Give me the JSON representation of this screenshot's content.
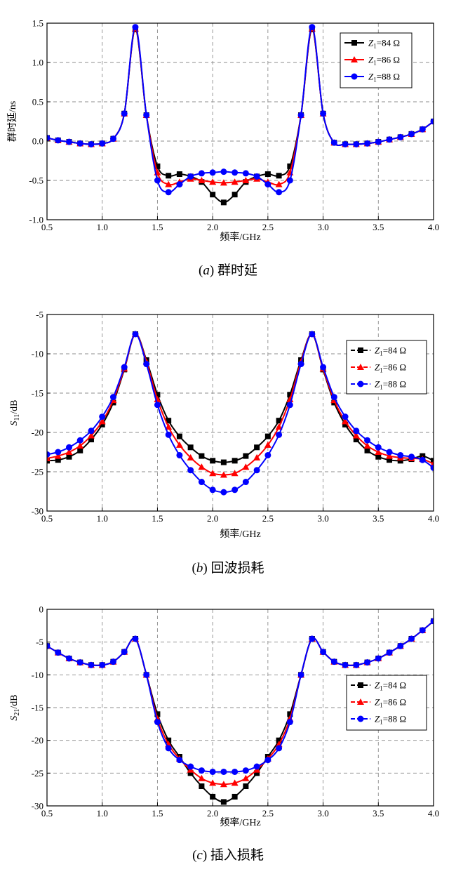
{
  "chart_data": [
    {
      "type": "line",
      "xlabel": "频率/GHz",
      "ylabel": "群时延/ns",
      "caption_letter": "a",
      "caption_text": "群时延",
      "xlim": [
        0.5,
        4.0
      ],
      "ylim": [
        -1.0,
        1.5
      ],
      "xticks": [
        "0.5",
        "1.0",
        "1.5",
        "2.0",
        "2.5",
        "3.0",
        "3.5",
        "4.0"
      ],
      "yticks": [
        "-1.0",
        "-0.5",
        "0.0",
        "0.5",
        "1.0",
        "1.5"
      ],
      "grid": true,
      "legend_position": "top-right",
      "x": [
        0.5,
        0.6,
        0.7,
        0.8,
        0.9,
        1.0,
        1.1,
        1.2,
        1.3,
        1.4,
        1.5,
        1.6,
        1.7,
        1.8,
        1.9,
        2.0,
        2.1,
        2.2,
        2.3,
        2.4,
        2.5,
        2.6,
        2.7,
        2.8,
        2.9,
        3.0,
        3.1,
        3.2,
        3.3,
        3.4,
        3.5,
        3.6,
        3.7,
        3.8,
        3.9,
        4.0
      ],
      "series": [
        {
          "name_sym": "Z",
          "name_sub": "1",
          "name_rest": "=84 Ω",
          "color": "#000000",
          "marker": "square",
          "values": [
            0.04,
            0.01,
            -0.01,
            -0.03,
            -0.04,
            -0.03,
            0.03,
            0.35,
            1.42,
            0.33,
            -0.32,
            -0.44,
            -0.42,
            -0.45,
            -0.52,
            -0.68,
            -0.78,
            -0.68,
            -0.52,
            -0.45,
            -0.42,
            -0.44,
            -0.32,
            0.33,
            1.42,
            0.35,
            -0.02,
            -0.04,
            -0.04,
            -0.03,
            -0.01,
            0.02,
            0.05,
            0.09,
            0.15,
            0.25
          ]
        },
        {
          "name_sym": "Z",
          "name_sub": "1",
          "name_rest": "=86 Ω",
          "color": "#ff0000",
          "marker": "triangle",
          "values": [
            0.04,
            0.01,
            -0.01,
            -0.03,
            -0.04,
            -0.03,
            0.03,
            0.35,
            1.43,
            0.33,
            -0.4,
            -0.55,
            -0.52,
            -0.48,
            -0.5,
            -0.52,
            -0.53,
            -0.52,
            -0.5,
            -0.48,
            -0.52,
            -0.55,
            -0.4,
            0.33,
            1.43,
            0.35,
            -0.02,
            -0.04,
            -0.04,
            -0.03,
            -0.01,
            0.02,
            0.05,
            0.09,
            0.15,
            0.25
          ]
        },
        {
          "name_sym": "Z",
          "name_sub": "1",
          "name_rest": "=88 Ω",
          "color": "#0000ff",
          "marker": "circle",
          "values": [
            0.04,
            0.01,
            -0.01,
            -0.03,
            -0.04,
            -0.03,
            0.03,
            0.35,
            1.45,
            0.33,
            -0.5,
            -0.65,
            -0.55,
            -0.45,
            -0.41,
            -0.4,
            -0.39,
            -0.4,
            -0.41,
            -0.45,
            -0.55,
            -0.65,
            -0.5,
            0.33,
            1.45,
            0.35,
            -0.02,
            -0.04,
            -0.04,
            -0.03,
            -0.01,
            0.02,
            0.05,
            0.09,
            0.15,
            0.25
          ]
        }
      ]
    },
    {
      "type": "line",
      "xlabel": "频率/GHz",
      "ylabel_sym": "S",
      "ylabel_sub": "11",
      "ylabel_rest": "/dB",
      "caption_letter": "b",
      "caption_text": "回波损耗",
      "xlim": [
        0.5,
        4.0
      ],
      "ylim": [
        -30,
        -5
      ],
      "xticks": [
        "0.5",
        "1.0",
        "1.5",
        "2.0",
        "2.5",
        "3.0",
        "3.5",
        "4.0"
      ],
      "yticks": [
        "-30",
        "-25",
        "-20",
        "-15",
        "-10",
        "-5"
      ],
      "grid": true,
      "legend_position": "top-right",
      "x": [
        0.5,
        0.6,
        0.7,
        0.8,
        0.9,
        1.0,
        1.1,
        1.2,
        1.3,
        1.4,
        1.5,
        1.6,
        1.7,
        1.8,
        1.9,
        2.0,
        2.1,
        2.2,
        2.3,
        2.4,
        2.5,
        2.6,
        2.7,
        2.8,
        2.9,
        3.0,
        3.1,
        3.2,
        3.3,
        3.4,
        3.5,
        3.6,
        3.7,
        3.8,
        3.9,
        4.0
      ],
      "series": [
        {
          "name_sym": "Z",
          "name_sub": "1",
          "name_rest": "=84 Ω",
          "color": "#000000",
          "marker": "square",
          "values": [
            -23.6,
            -23.5,
            -23.1,
            -22.3,
            -20.9,
            -19.0,
            -16.2,
            -12.0,
            -7.5,
            -10.8,
            -15.2,
            -18.5,
            -20.5,
            -21.9,
            -23.0,
            -23.6,
            -23.8,
            -23.6,
            -23.0,
            -21.9,
            -20.5,
            -18.5,
            -15.2,
            -10.8,
            -7.5,
            -12.0,
            -16.2,
            -19.0,
            -20.9,
            -22.3,
            -23.1,
            -23.5,
            -23.6,
            -23.4,
            -23.0,
            -23.6
          ]
        },
        {
          "name_sym": "Z",
          "name_sub": "1",
          "name_rest": "=86 Ω",
          "color": "#ff0000",
          "marker": "triangle",
          "values": [
            -23.3,
            -23.0,
            -22.5,
            -21.7,
            -20.4,
            -18.6,
            -15.9,
            -11.9,
            -7.5,
            -11.0,
            -15.8,
            -19.3,
            -21.6,
            -23.2,
            -24.4,
            -25.2,
            -25.4,
            -25.2,
            -24.4,
            -23.2,
            -21.6,
            -19.3,
            -15.8,
            -11.0,
            -7.5,
            -11.9,
            -15.9,
            -18.6,
            -20.4,
            -21.7,
            -22.5,
            -23.0,
            -23.2,
            -23.3,
            -23.4,
            -24.0
          ]
        },
        {
          "name_sym": "Z",
          "name_sub": "1",
          "name_rest": "=88 Ω",
          "color": "#0000ff",
          "marker": "circle",
          "values": [
            -22.8,
            -22.5,
            -21.9,
            -21.0,
            -19.8,
            -18.0,
            -15.5,
            -11.7,
            -7.5,
            -11.3,
            -16.5,
            -20.3,
            -22.9,
            -24.8,
            -26.3,
            -27.3,
            -27.6,
            -27.3,
            -26.3,
            -24.8,
            -22.9,
            -20.3,
            -16.5,
            -11.3,
            -7.5,
            -11.7,
            -15.5,
            -18.0,
            -19.8,
            -21.0,
            -21.9,
            -22.5,
            -22.9,
            -23.1,
            -23.5,
            -24.5
          ]
        }
      ]
    },
    {
      "type": "line",
      "xlabel": "频率/GHz",
      "ylabel_sym": "S",
      "ylabel_sub": "21",
      "ylabel_rest": "/dB",
      "caption_letter": "c",
      "caption_text": "插入损耗",
      "xlim": [
        0.5,
        4.0
      ],
      "ylim": [
        -30,
        0
      ],
      "xticks": [
        "0.5",
        "1.0",
        "1.5",
        "2.0",
        "2.5",
        "3.0",
        "3.5",
        "4.0"
      ],
      "yticks": [
        "-30",
        "-25",
        "-20",
        "-15",
        "-10",
        "-5",
        "0"
      ],
      "grid": true,
      "legend_position": "center-right",
      "x": [
        0.5,
        0.6,
        0.7,
        0.8,
        0.9,
        1.0,
        1.1,
        1.2,
        1.3,
        1.4,
        1.5,
        1.6,
        1.7,
        1.8,
        1.9,
        2.0,
        2.1,
        2.2,
        2.3,
        2.4,
        2.5,
        2.6,
        2.7,
        2.8,
        2.9,
        3.0,
        3.1,
        3.2,
        3.3,
        3.4,
        3.5,
        3.6,
        3.7,
        3.8,
        3.9,
        4.0
      ],
      "series": [
        {
          "name_sym": "Z",
          "name_sub": "1",
          "name_rest": "=84 Ω",
          "color": "#000000",
          "marker": "square",
          "values": [
            -5.6,
            -6.6,
            -7.5,
            -8.1,
            -8.5,
            -8.5,
            -8.0,
            -6.5,
            -4.5,
            -10.0,
            -16.0,
            -20.0,
            -22.5,
            -25.0,
            -27.0,
            -28.6,
            -29.4,
            -28.6,
            -27.0,
            -25.0,
            -22.5,
            -20.0,
            -16.0,
            -10.0,
            -4.5,
            -6.5,
            -8.0,
            -8.5,
            -8.5,
            -8.1,
            -7.5,
            -6.6,
            -5.6,
            -4.5,
            -3.2,
            -1.8
          ]
        },
        {
          "name_sym": "Z",
          "name_sub": "1",
          "name_rest": "=86 Ω",
          "color": "#ff0000",
          "marker": "triangle",
          "values": [
            -5.6,
            -6.6,
            -7.5,
            -8.1,
            -8.5,
            -8.5,
            -8.0,
            -6.5,
            -4.5,
            -10.0,
            -16.7,
            -20.6,
            -22.8,
            -24.5,
            -25.8,
            -26.5,
            -26.7,
            -26.5,
            -25.8,
            -24.5,
            -22.8,
            -20.6,
            -16.7,
            -10.0,
            -4.5,
            -6.5,
            -8.0,
            -8.5,
            -8.5,
            -8.1,
            -7.5,
            -6.6,
            -5.6,
            -4.5,
            -3.2,
            -1.8
          ]
        },
        {
          "name_sym": "Z",
          "name_sub": "1",
          "name_rest": "=88 Ω",
          "color": "#0000ff",
          "marker": "circle",
          "values": [
            -5.6,
            -6.6,
            -7.5,
            -8.1,
            -8.5,
            -8.5,
            -8.0,
            -6.5,
            -4.5,
            -10.0,
            -17.2,
            -21.2,
            -23.0,
            -24.0,
            -24.6,
            -24.8,
            -24.8,
            -24.8,
            -24.6,
            -24.0,
            -23.0,
            -21.2,
            -17.2,
            -10.0,
            -4.5,
            -6.5,
            -8.0,
            -8.5,
            -8.5,
            -8.1,
            -7.5,
            -6.6,
            -5.6,
            -4.5,
            -3.2,
            -1.8
          ]
        }
      ]
    }
  ]
}
